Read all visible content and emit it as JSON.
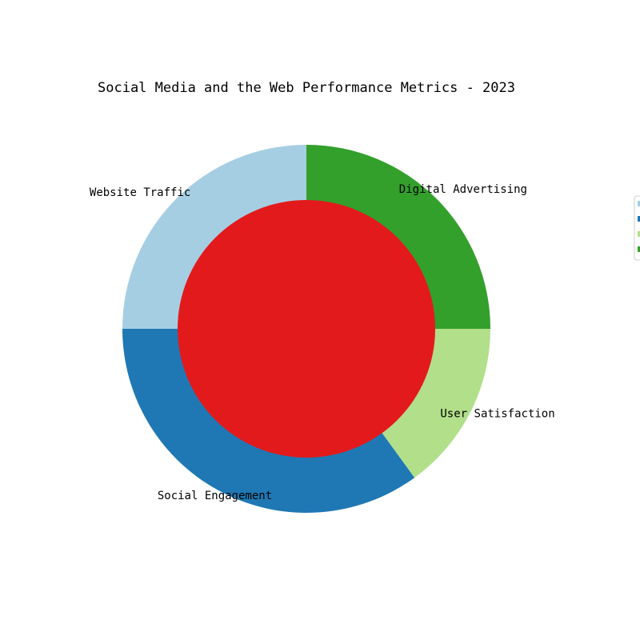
{
  "chart_data": {
    "type": "pie",
    "variant": "donut",
    "title": "Social Media and the Web Performance Metrics - 2023",
    "categories": [
      "Website Traffic",
      "Social Engagement",
      "User Satisfaction",
      "Digital Advertising"
    ],
    "values": [
      25,
      35,
      15,
      25
    ],
    "colors": [
      "#a6cee3",
      "#1f78b4",
      "#b2df8a",
      "#33a02c"
    ],
    "center_color": "#e31a1c",
    "start_angle_deg": 90,
    "direction": "counterclockwise",
    "legend": {
      "position": "right (clipped)",
      "entries_visible": false
    }
  }
}
